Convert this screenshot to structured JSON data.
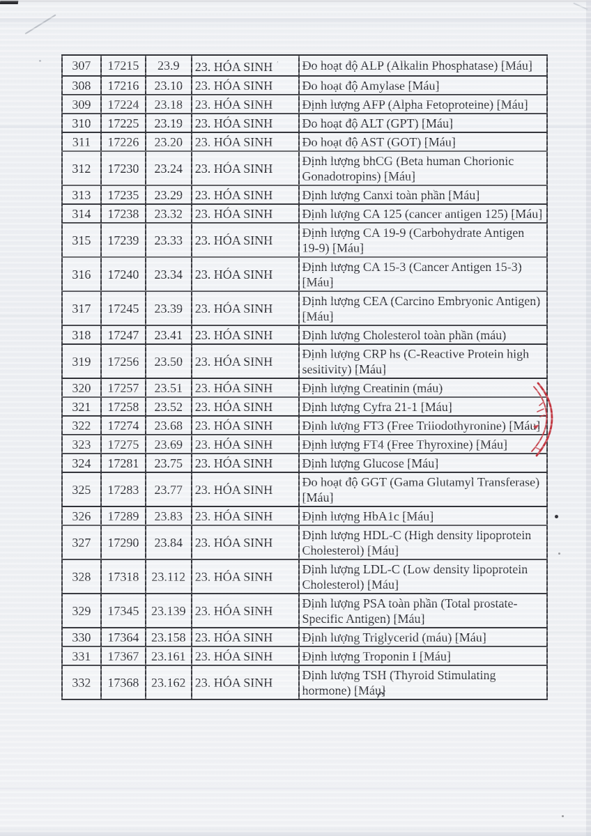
{
  "table": {
    "group_label": "23. HÓA SINH",
    "rows": [
      {
        "stt": "307",
        "code": "17215",
        "sub": "23.9",
        "group": "23. HÓA SINH",
        "group_tick": "ʹ",
        "desc": "Đo hoạt độ ALP (Alkalin Phosphatase) [Máu]"
      },
      {
        "stt": "308",
        "code": "17216",
        "sub": "23.10",
        "group": "23. HÓA SINH",
        "desc": "Đo hoạt độ Amylase [Máu]"
      },
      {
        "stt": "309",
        "code": "17224",
        "sub": "23.18",
        "group": "23. HÓA SINH",
        "desc": "Định lượng AFP (Alpha Fetoproteine) [Máu]"
      },
      {
        "stt": "310",
        "code": "17225",
        "sub": "23.19",
        "group": "23. HÓA SINH",
        "desc": "Đo hoạt độ ALT (GPT) [Máu]"
      },
      {
        "stt": "311",
        "code": "17226",
        "sub": "23.20",
        "group": "23. HÓA SINH",
        "desc": "Đo hoạt độ AST (GOT) [Máu]"
      },
      {
        "stt": "312",
        "code": "17230",
        "sub": "23.24",
        "group": "23. HÓA SINH",
        "desc": "Định lượng bhCG (Beta human Chorionic Gonadotropins) [Máu]"
      },
      {
        "stt": "313",
        "code": "17235",
        "sub": "23.29",
        "group": "23. HÓA SINH",
        "desc": "Định lượng Canxi toàn phần [Máu]"
      },
      {
        "stt": "314",
        "code": "17238",
        "sub": "23.32",
        "group": "23. HÓA SINH",
        "desc": "Định lượng CA 125 (cancer antigen 125) [Máu]"
      },
      {
        "stt": "315",
        "code": "17239",
        "sub": "23.33",
        "group": "23. HÓA SINH",
        "desc": "Định lượng CA 19-9 (Carbohydrate Antigen 19-9) [Máu]"
      },
      {
        "stt": "316",
        "code": "17240",
        "sub": "23.34",
        "group": "23. HÓA SINH",
        "desc": "Định lượng CA 15-3 (Cancer Antigen 15-3) [Máu]"
      },
      {
        "stt": "317",
        "code": "17245",
        "sub": "23.39",
        "group": "23. HÓA SINH",
        "desc": "Định lượng CEA (Carcino Embryonic Antigen) [Máu]"
      },
      {
        "stt": "318",
        "code": "17247",
        "sub": "23.41",
        "group": "23. HÓA SINH",
        "desc": "Định lượng Cholesterol toàn phần (máu)"
      },
      {
        "stt": "319",
        "code": "17256",
        "sub": "23.50",
        "group": "23. HÓA SINH",
        "desc": "Định lượng CRP hs (C-Reactive Protein high sesitivity) [Máu]"
      },
      {
        "stt": "320",
        "code": "17257",
        "sub": "23.51",
        "group": "23. HÓA SINH",
        "desc": "Định lượng Creatinin (máu)"
      },
      {
        "stt": "321",
        "code": "17258",
        "sub": "23.52",
        "group": "23. HÓA SINH",
        "desc": "Định lượng Cyfra 21-1 [Máu]"
      },
      {
        "stt": "322",
        "code": "17274",
        "sub": "23.68",
        "group": "23. HÓA SINH",
        "desc": "Định lượng FT3 (Free Triiodothyronine) [Máu]"
      },
      {
        "stt": "323",
        "code": "17275",
        "sub": "23.69",
        "group": "23. HÓA SINH",
        "desc": "Định lượng FT4 (Free Thyroxine) [Máu]"
      },
      {
        "stt": "324",
        "code": "17281",
        "sub": "23.75",
        "group": "23. HÓA SINH",
        "desc": "Định lượng Glucose [Máu]"
      },
      {
        "stt": "325",
        "code": "17283",
        "sub": "23.77",
        "group": "23. HÓA SINH",
        "desc": "Đo hoạt độ GGT (Gama Glutamyl Transferase) [Máu]"
      },
      {
        "stt": "326",
        "code": "17289",
        "sub": "23.83",
        "group": "23. HÓA SINH",
        "desc": "Định lượng HbA1c [Máu]"
      },
      {
        "stt": "327",
        "code": "17290",
        "sub": "23.84",
        "group": "23. HÓA SINH",
        "desc": "Định lượng HDL-C (High density lipoprotein Cholesterol) [Máu]"
      },
      {
        "stt": "328",
        "code": "17318",
        "sub": "23.112",
        "group": "23. HÓA SINH",
        "desc": "Định lượng LDL-C (Low density lipoprotein Cholesterol) [Máu]"
      },
      {
        "stt": "329",
        "code": "17345",
        "sub": "23.139",
        "group": "23. HÓA SINH",
        "desc": "Định lượng PSA toàn phần (Total prostate-Specific Antigen) [Máu]"
      },
      {
        "stt": "330",
        "code": "17364",
        "sub": "23.158",
        "group": "23. HÓA SINH",
        "desc": "Định lượng Triglycerid (máu) [Máu]"
      },
      {
        "stt": "331",
        "code": "17367",
        "sub": "23.161",
        "group": "23. HÓA SINH",
        "desc": "Định lượng Troponin I [Máu]"
      },
      {
        "stt": "332",
        "code": "17368",
        "sub": "23.162",
        "group": "23. HÓA SINH",
        "desc": "Định lượng TSH (Thyroid Stimulating hormone) [Máu]"
      }
    ]
  },
  "artifacts": {
    "stamp_color": "#bf2b36",
    "ink_color": "#2d2e34"
  }
}
